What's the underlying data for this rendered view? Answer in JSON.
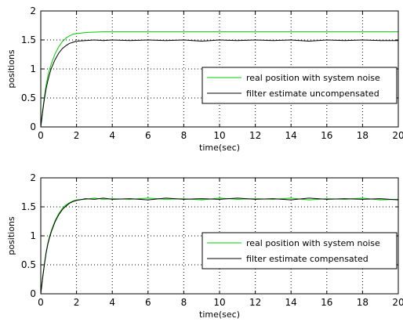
{
  "chart_data": [
    {
      "type": "line",
      "title": "",
      "xlabel": "time(sec)",
      "ylabel": "positions",
      "xlim": [
        0,
        20
      ],
      "ylim": [
        0,
        2
      ],
      "xticks": [
        0,
        2,
        4,
        6,
        8,
        10,
        12,
        14,
        16,
        18,
        20
      ],
      "yticks": [
        0,
        0.5,
        1,
        1.5,
        2
      ],
      "xtick_labels": [
        "0",
        "2",
        "4",
        "6",
        "8",
        "10",
        "12",
        "14",
        "16",
        "18",
        "20"
      ],
      "ytick_labels": [
        "0",
        "0.5",
        "1",
        "1.5",
        "2"
      ],
      "grid": true,
      "grid_style": "dotted",
      "legend_position": "center-right",
      "series": [
        {
          "name": "real position with system noise",
          "color": "#00cc00",
          "x": [
            0,
            0.1,
            0.2,
            0.3,
            0.4,
            0.5,
            0.6,
            0.8,
            1.0,
            1.2,
            1.4,
            1.6,
            1.8,
            2.0,
            2.3,
            2.6,
            3.0,
            3.5,
            4.0,
            6.0,
            8.0,
            10.0,
            12.0,
            14.0,
            16.0,
            18.0,
            20.0
          ],
          "y": [
            0,
            0.28,
            0.52,
            0.72,
            0.88,
            1.0,
            1.1,
            1.26,
            1.38,
            1.47,
            1.53,
            1.57,
            1.6,
            1.61,
            1.62,
            1.63,
            1.635,
            1.64,
            1.64,
            1.64,
            1.64,
            1.64,
            1.64,
            1.64,
            1.64,
            1.64,
            1.64
          ]
        },
        {
          "name": "filter estimate uncompensated",
          "color": "#000000",
          "x": [
            0,
            0.1,
            0.2,
            0.3,
            0.4,
            0.5,
            0.6,
            0.8,
            1.0,
            1.2,
            1.4,
            1.6,
            1.8,
            2.0,
            2.5,
            3.0,
            3.5,
            4.0,
            5.0,
            6.0,
            7.0,
            8.0,
            9.0,
            10.0,
            11.0,
            12.0,
            13.0,
            14.0,
            15.0,
            16.0,
            17.0,
            18.0,
            19.0,
            20.0
          ],
          "y": [
            0,
            0.25,
            0.48,
            0.66,
            0.8,
            0.92,
            1.02,
            1.16,
            1.27,
            1.35,
            1.4,
            1.44,
            1.46,
            1.48,
            1.49,
            1.5,
            1.49,
            1.5,
            1.49,
            1.5,
            1.49,
            1.5,
            1.48,
            1.5,
            1.49,
            1.5,
            1.49,
            1.5,
            1.48,
            1.5,
            1.49,
            1.5,
            1.49,
            1.49
          ]
        }
      ]
    },
    {
      "type": "line",
      "title": "",
      "xlabel": "time(sec)",
      "ylabel": "positions",
      "xlim": [
        0,
        20
      ],
      "ylim": [
        0,
        2
      ],
      "xticks": [
        0,
        2,
        4,
        6,
        8,
        10,
        12,
        14,
        16,
        18,
        20
      ],
      "yticks": [
        0,
        0.5,
        1,
        1.5,
        2
      ],
      "xtick_labels": [
        "0",
        "2",
        "4",
        "6",
        "8",
        "10",
        "12",
        "14",
        "16",
        "18",
        "20"
      ],
      "ytick_labels": [
        "0",
        "0.5",
        "1",
        "1.5",
        "2"
      ],
      "grid": true,
      "grid_style": "dotted",
      "legend_position": "center-right",
      "series": [
        {
          "name": "real position with system noise",
          "color": "#00cc00",
          "x": [
            0,
            0.1,
            0.2,
            0.3,
            0.4,
            0.5,
            0.6,
            0.8,
            1.0,
            1.2,
            1.4,
            1.6,
            1.8,
            2.0,
            2.5,
            3.0,
            3.5,
            4.0,
            5.0,
            6.0,
            7.0,
            8.0,
            9.0,
            10.0,
            11.0,
            12.0,
            13.0,
            14.0,
            15.0,
            16.0,
            17.0,
            18.0,
            19.0,
            20.0
          ],
          "y": [
            0,
            0.28,
            0.52,
            0.72,
            0.88,
            1.0,
            1.1,
            1.26,
            1.38,
            1.47,
            1.53,
            1.57,
            1.6,
            1.62,
            1.63,
            1.65,
            1.63,
            1.64,
            1.63,
            1.65,
            1.63,
            1.64,
            1.62,
            1.65,
            1.63,
            1.64,
            1.63,
            1.65,
            1.62,
            1.64,
            1.63,
            1.65,
            1.62,
            1.63
          ]
        },
        {
          "name": "filter estimate compensated",
          "color": "#000000",
          "x": [
            0,
            0.1,
            0.2,
            0.3,
            0.4,
            0.5,
            0.6,
            0.8,
            1.0,
            1.2,
            1.4,
            1.6,
            1.8,
            2.0,
            2.5,
            3.0,
            3.5,
            4.0,
            5.0,
            6.0,
            7.0,
            8.0,
            9.0,
            10.0,
            11.0,
            12.0,
            13.0,
            14.0,
            15.0,
            16.0,
            17.0,
            18.0,
            19.0,
            20.0
          ],
          "y": [
            0,
            0.26,
            0.5,
            0.7,
            0.86,
            0.98,
            1.08,
            1.24,
            1.36,
            1.45,
            1.51,
            1.56,
            1.59,
            1.61,
            1.64,
            1.63,
            1.65,
            1.63,
            1.64,
            1.62,
            1.65,
            1.63,
            1.64,
            1.63,
            1.65,
            1.63,
            1.64,
            1.62,
            1.65,
            1.63,
            1.64,
            1.63,
            1.64,
            1.62
          ]
        }
      ]
    }
  ]
}
